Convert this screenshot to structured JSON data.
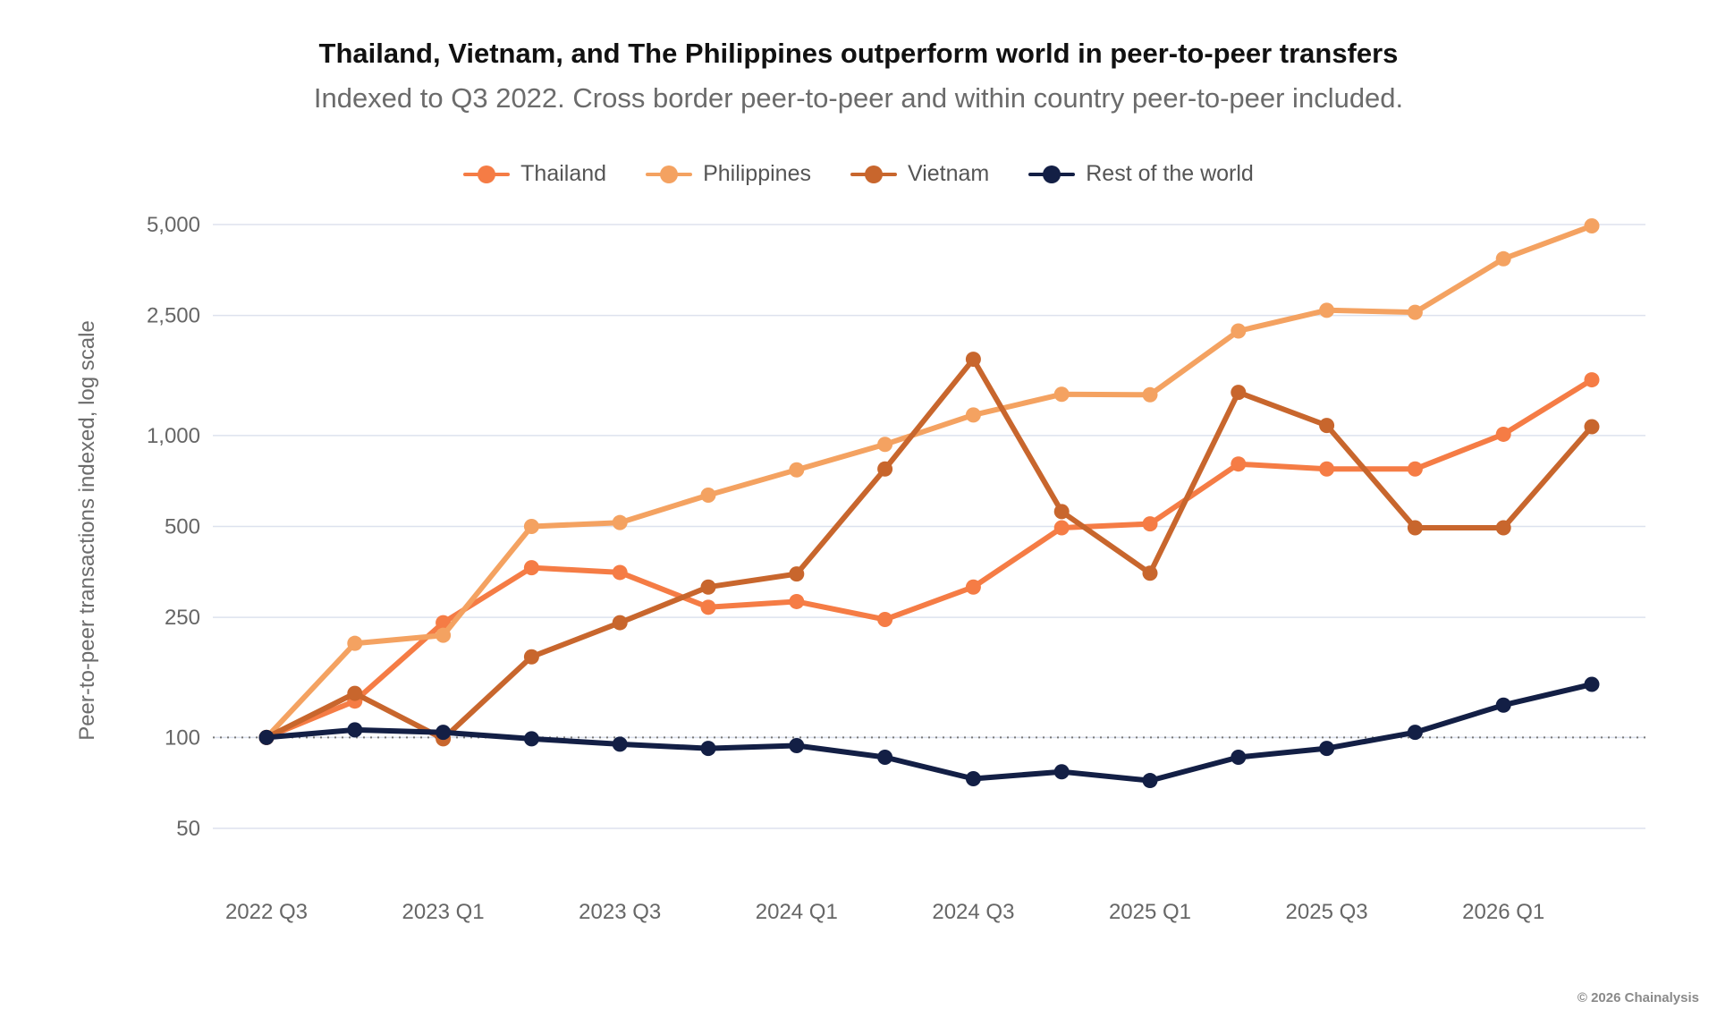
{
  "chart_data": {
    "type": "line",
    "title": "Thailand, Vietnam, and The Philippines outperform world in peer-to-peer transfers",
    "subtitle": "Indexed to Q3 2022. Cross border peer-to-peer and within country peer-to-peer included.",
    "ylabel": "Peer-to-peer transactions indexed, log scale",
    "xlabel": "",
    "yscale": "log",
    "ylim": [
      40,
      6000
    ],
    "yticks": [
      5000,
      2500,
      1000,
      500,
      250,
      100,
      50
    ],
    "ytick_labels": [
      "5,000",
      "2,500",
      "1,000",
      "500",
      "250",
      "100",
      "50"
    ],
    "x": [
      "2022 Q3",
      "2022 Q4",
      "2023 Q1",
      "2023 Q2",
      "2023 Q3",
      "2023 Q4",
      "2024 Q1",
      "2024 Q2",
      "2024 Q3",
      "2024 Q4",
      "2025 Q1",
      "2025 Q2",
      "2025 Q3",
      "2025 Q4",
      "2026 Q1",
      "2026 Q2"
    ],
    "xtick_labels": [
      "2022 Q3",
      "2023 Q1",
      "2023 Q3",
      "2024 Q1",
      "2024 Q3",
      "2025 Q1",
      "2025 Q3",
      "2026 Q1"
    ],
    "reference_line": 100,
    "grid": true,
    "legend_position": "top-center",
    "series": [
      {
        "name": "Thailand",
        "color": "#f57c45",
        "values": [
          100,
          132,
          240,
          365,
          352,
          270,
          282,
          246,
          315,
          495,
          510,
          805,
          775,
          775,
          1010,
          1530
        ]
      },
      {
        "name": "Philippines",
        "color": "#f4a261",
        "values": [
          100,
          205,
          218,
          500,
          515,
          635,
          770,
          935,
          1170,
          1370,
          1365,
          2220,
          2600,
          2560,
          3850,
          4950
        ]
      },
      {
        "name": "Vietnam",
        "color": "#c8662d",
        "values": [
          100,
          140,
          99,
          185,
          240,
          315,
          348,
          775,
          1790,
          560,
          350,
          1390,
          1080,
          495,
          495,
          1070
        ]
      },
      {
        "name": "Rest of the world",
        "color": "#131f45",
        "values": [
          100,
          106,
          104,
          99,
          95,
          92,
          94,
          86,
          73,
          77,
          72,
          86,
          92,
          104,
          128,
          150
        ]
      }
    ]
  },
  "credit": "© 2026 Chainalysis"
}
